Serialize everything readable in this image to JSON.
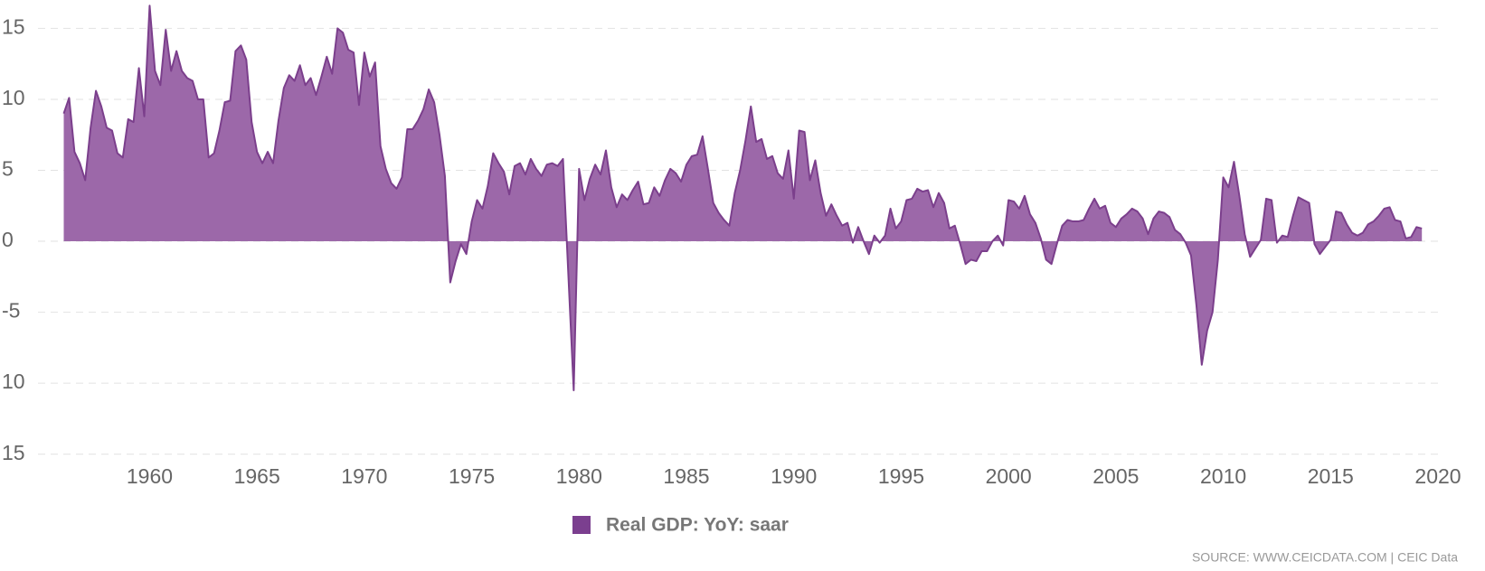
{
  "chart_data": {
    "type": "area",
    "series": [
      {
        "name": "Real GDP: YoY: saar",
        "color": "#7b3f8c",
        "fill": "#9c68a9",
        "x": [
          1956.0,
          1956.25,
          1956.5,
          1956.75,
          1957.0,
          1957.25,
          1957.5,
          1957.75,
          1958.0,
          1958.25,
          1958.5,
          1958.75,
          1959.0,
          1959.25,
          1959.5,
          1959.75,
          1960.0,
          1960.25,
          1960.5,
          1960.75,
          1961.0,
          1961.25,
          1961.5,
          1961.75,
          1962.0,
          1962.25,
          1962.5,
          1962.75,
          1963.0,
          1963.25,
          1963.5,
          1963.75,
          1964.0,
          1964.25,
          1964.5,
          1964.75,
          1965.0,
          1965.25,
          1965.5,
          1965.75,
          1966.0,
          1966.25,
          1966.5,
          1966.75,
          1967.0,
          1967.25,
          1967.5,
          1967.75,
          1968.0,
          1968.25,
          1968.5,
          1968.75,
          1969.0,
          1969.25,
          1969.5,
          1969.75,
          1970.0,
          1970.25,
          1970.5,
          1970.75,
          1971.0,
          1971.25,
          1971.5,
          1971.75,
          1972.0,
          1972.25,
          1972.5,
          1972.75,
          1973.0,
          1973.25,
          1973.5,
          1973.75,
          1974.0,
          1974.25,
          1974.5,
          1974.75,
          1975.0,
          1975.25,
          1975.5,
          1975.75,
          1976.0,
          1976.25,
          1976.5,
          1976.75,
          1977.0,
          1977.25,
          1977.5,
          1977.75,
          1978.0,
          1978.25,
          1978.5,
          1978.75,
          1979.0,
          1979.25,
          1979.75,
          1980.0,
          1980.25,
          1980.5,
          1980.75,
          1981.0,
          1981.25,
          1981.5,
          1981.75,
          1982.0,
          1982.25,
          1982.5,
          1982.75,
          1983.0,
          1983.25,
          1983.5,
          1983.75,
          1984.0,
          1984.25,
          1984.5,
          1984.75,
          1985.0,
          1985.25,
          1985.5,
          1985.75,
          1986.0,
          1986.25,
          1986.5,
          1986.75,
          1987.0,
          1987.25,
          1987.5,
          1987.75,
          1988.0,
          1988.25,
          1988.5,
          1988.75,
          1989.0,
          1989.25,
          1989.5,
          1989.75,
          1990.0,
          1990.25,
          1990.5,
          1990.75,
          1991.0,
          1991.25,
          1991.5,
          1991.75,
          1992.0,
          1992.25,
          1992.5,
          1992.75,
          1993.0,
          1993.25,
          1993.5,
          1993.75,
          1994.0,
          1994.25,
          1994.5,
          1994.75,
          1995.0,
          1995.25,
          1995.5,
          1995.75,
          1996.0,
          1996.25,
          1996.5,
          1996.75,
          1997.0,
          1997.25,
          1997.5,
          1997.75,
          1998.0,
          1998.25,
          1998.5,
          1998.75,
          1999.0,
          1999.25,
          1999.5,
          1999.75,
          2000.0,
          2000.25,
          2000.5,
          2000.75,
          2001.0,
          2001.25,
          2001.5,
          2001.75,
          2002.0,
          2002.25,
          2002.5,
          2002.75,
          2003.0,
          2003.25,
          2003.5,
          2003.75,
          2004.0,
          2004.25,
          2004.5,
          2004.75,
          2005.0,
          2005.25,
          2005.5,
          2005.75,
          2006.0,
          2006.25,
          2006.5,
          2006.75,
          2007.0,
          2007.25,
          2007.5,
          2007.75,
          2008.0,
          2008.25,
          2008.5,
          2008.75,
          2009.0,
          2009.25,
          2009.5,
          2009.75,
          2010.0,
          2010.25,
          2010.5,
          2010.75,
          2011.0,
          2011.25,
          2011.5,
          2011.75,
          2012.0,
          2012.25,
          2012.5,
          2012.75,
          2013.0,
          2013.25,
          2013.5,
          2013.75,
          2014.0,
          2014.25,
          2014.5,
          2014.75,
          2015.0,
          2015.25,
          2015.5,
          2015.75,
          2016.0,
          2016.25,
          2016.5,
          2016.75,
          2017.0,
          2017.25,
          2017.5,
          2017.75,
          2018.0,
          2018.25,
          2018.5,
          2018.75,
          2019.0,
          2019.25
        ],
        "values": [
          9.0,
          10.1,
          6.3,
          5.5,
          4.3,
          8.0,
          10.6,
          9.5,
          8.0,
          7.8,
          6.2,
          5.9,
          8.6,
          8.4,
          12.2,
          8.8,
          16.6,
          12.0,
          11.0,
          14.9,
          12.0,
          13.4,
          12.0,
          11.5,
          11.3,
          10.0,
          10.0,
          5.9,
          6.2,
          7.8,
          9.8,
          9.9,
          13.4,
          13.8,
          12.8,
          8.4,
          6.3,
          5.5,
          6.3,
          5.5,
          8.5,
          10.8,
          11.7,
          11.3,
          12.4,
          11.0,
          11.5,
          10.3,
          11.6,
          13.0,
          11.8,
          15.0,
          14.7,
          13.5,
          13.3,
          9.6,
          13.3,
          11.6,
          12.6,
          6.7,
          5.1,
          4.1,
          3.7,
          4.5,
          7.9,
          7.9,
          8.5,
          9.3,
          10.7,
          9.8,
          7.5,
          4.6,
          -2.9,
          -1.4,
          -0.2,
          -0.9,
          1.4,
          2.9,
          2.3,
          3.9,
          6.2,
          5.5,
          4.9,
          3.3,
          5.3,
          5.5,
          4.7,
          5.8,
          5.1,
          4.6,
          5.4,
          5.5,
          5.3,
          5.8,
          -10.5,
          5.1,
          2.9,
          4.4,
          5.4,
          4.7,
          6.4,
          3.8,
          2.4,
          3.3,
          2.9,
          3.6,
          4.2,
          2.6,
          2.7,
          3.8,
          3.2,
          4.3,
          5.1,
          4.8,
          4.2,
          5.4,
          6.0,
          6.1,
          7.4,
          5.1,
          2.7,
          2.0,
          1.5,
          1.1,
          3.4,
          5.0,
          7.1,
          9.5,
          7.0,
          7.2,
          5.8,
          6.0,
          4.8,
          4.4,
          6.4,
          3.0,
          7.8,
          7.7,
          4.3,
          5.7,
          3.4,
          1.8,
          2.6,
          1.8,
          1.1,
          1.3,
          -0.1,
          1.0,
          0.0,
          -0.9,
          0.4,
          -0.1,
          0.4,
          2.3,
          0.9,
          1.4,
          2.9,
          3.0,
          3.7,
          3.5,
          3.6,
          2.4,
          3.4,
          2.7,
          0.9,
          1.1,
          -0.2,
          -1.6,
          -1.3,
          -1.4,
          -0.7,
          -0.7,
          0.0,
          0.4,
          -0.3,
          2.9,
          2.8,
          2.3,
          3.2,
          1.9,
          1.3,
          0.2,
          -1.3,
          -1.6,
          -0.2,
          1.1,
          1.5,
          1.4,
          1.4,
          1.5,
          2.3,
          3.0,
          2.3,
          2.5,
          1.3,
          1.0,
          1.6,
          1.9,
          2.3,
          2.1,
          1.6,
          0.5,
          1.6,
          2.1,
          2.0,
          1.7,
          0.8,
          0.5,
          -0.1,
          -1.0,
          -4.5,
          -8.7,
          -6.3,
          -5.0,
          -1.3,
          4.5,
          3.8,
          5.6,
          3.2,
          0.5,
          -1.1,
          -0.5,
          0.1,
          3.0,
          2.9,
          -0.1,
          0.4,
          0.3,
          1.8,
          3.1,
          2.9,
          2.7,
          -0.2,
          -0.9,
          -0.4,
          0.1,
          2.1,
          2.0,
          1.2,
          0.6,
          0.4,
          0.6,
          1.2,
          1.4,
          1.8,
          2.3,
          2.4,
          1.5,
          1.4,
          0.2,
          0.3,
          1.0,
          0.9
        ]
      }
    ],
    "xlim": [
      1954.8,
      2020
    ],
    "xticks": [
      1960,
      1965,
      1970,
      1975,
      1980,
      1985,
      1990,
      1995,
      2000,
      2005,
      2010,
      2015,
      2020
    ],
    "ylim": [
      -15,
      15
    ],
    "yticks": [
      15,
      10,
      5,
      0,
      -5,
      {
        "value": -10,
        "label": "10"
      },
      {
        "value": -15,
        "label": "15"
      }
    ],
    "grid": true,
    "source": "SOURCE: WWW.CEICDATA.COM | CEIC Data"
  }
}
